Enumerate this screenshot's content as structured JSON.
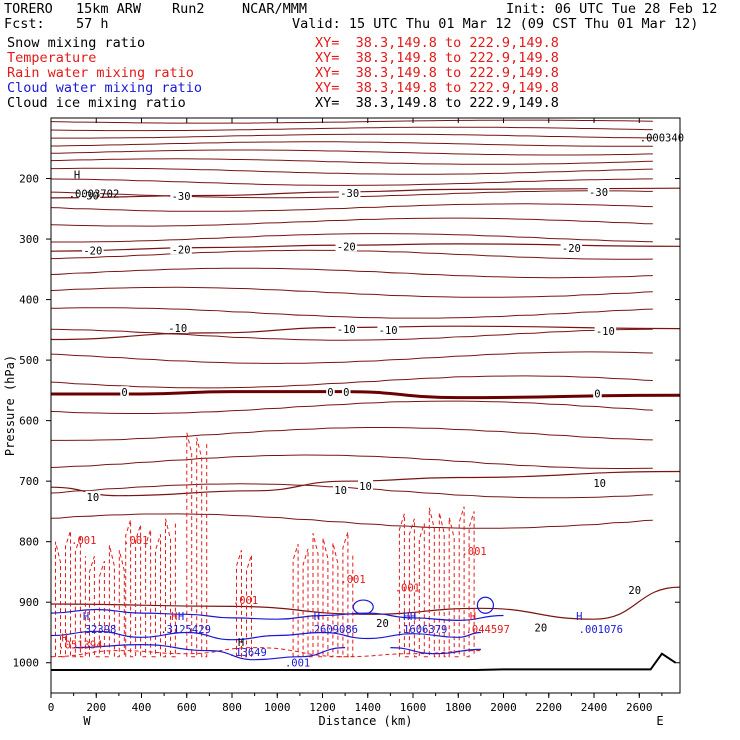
{
  "header": {
    "model": "TORERO",
    "resolution": "15km ARW",
    "run": "Run2",
    "center": "NCAR/MMM",
    "init": "Init: 06 UTC Tue 28 Feb 12",
    "fcst_label": "Fcst:",
    "fcst_value": "57 h",
    "valid": "Valid: 15 UTC Thu 01 Mar 12 (09 CST Thu 01 Mar 12)"
  },
  "fields": [
    {
      "label": "Snow mixing ratio",
      "xy": "XY=  38.3,149.8 to 222.9,149.8",
      "color": "#000000"
    },
    {
      "label": "Temperature",
      "xy": "XY=  38.3,149.8 to 222.9,149.8",
      "color": "#e41a1a"
    },
    {
      "label": "Rain water mixing ratio",
      "xy": "XY=  38.3,149.8 to 222.9,149.8",
      "color": "#e41a1a"
    },
    {
      "label": "Cloud water mixing ratio",
      "xy": "XY=  38.3,149.8 to 222.9,149.8",
      "color": "#1a1ad6"
    },
    {
      "label": "Cloud ice mixing ratio",
      "xy": "XY=  38.3,149.8 to 222.9,149.8",
      "color": "#000000"
    }
  ],
  "chart_data": {
    "type": "cross-section contour",
    "xlabel": "Distance (km)",
    "ylabel": "Pressure (hPa)",
    "xlim": [
      0,
      2780
    ],
    "ylim": [
      1050,
      100
    ],
    "x_ticks": [
      0,
      200,
      400,
      600,
      800,
      1000,
      1200,
      1400,
      1600,
      1800,
      2000,
      2200,
      2400,
      2600
    ],
    "y_ticks": [
      200,
      300,
      400,
      500,
      600,
      700,
      800,
      900,
      1000
    ],
    "left_end": "W",
    "right_end": "E",
    "temperature_isotherms": [
      {
        "label": "-30",
        "p_at": [
          [
            0,
            232
          ],
          [
            700,
            228
          ],
          [
            1300,
            222
          ],
          [
            1800,
            218
          ],
          [
            2780,
            216
          ]
        ]
      },
      {
        "label": "-20",
        "p_at": [
          [
            0,
            320
          ],
          [
            700,
            314
          ],
          [
            1300,
            310
          ],
          [
            1800,
            308
          ],
          [
            2780,
            312
          ]
        ]
      },
      {
        "label": "-10",
        "p_at": [
          [
            0,
            466
          ],
          [
            700,
            455
          ],
          [
            1300,
            446
          ],
          [
            1800,
            444
          ],
          [
            2780,
            448
          ]
        ]
      },
      {
        "label": "0",
        "p_at": [
          [
            0,
            556
          ],
          [
            400,
            556
          ],
          [
            800,
            552
          ],
          [
            1300,
            552
          ],
          [
            1800,
            562
          ],
          [
            2780,
            558
          ]
        ]
      },
      {
        "label": "10",
        "p_at": [
          [
            0,
            710
          ],
          [
            300,
            724
          ],
          [
            900,
            716
          ],
          [
            1300,
            700
          ],
          [
            1800,
            694
          ],
          [
            2780,
            684
          ]
        ]
      },
      {
        "label": "20",
        "p_at": [
          [
            0,
            903
          ],
          [
            800,
            907
          ],
          [
            1400,
            920
          ],
          [
            1900,
            910
          ],
          [
            2400,
            928
          ],
          [
            2780,
            875
          ]
        ]
      }
    ],
    "temperature_labels": [
      {
        "text": "-30",
        "x": 170,
        "p": 228
      },
      {
        "text": "-30",
        "x": 575,
        "p": 229
      },
      {
        "text": "-30",
        "x": 1320,
        "p": 224
      },
      {
        "text": "-30",
        "x": 2420,
        "p": 222
      },
      {
        "text": "-20",
        "x": 185,
        "p": 319
      },
      {
        "text": "-20",
        "x": 575,
        "p": 317
      },
      {
        "text": "-20",
        "x": 1305,
        "p": 312
      },
      {
        "text": "-20",
        "x": 2300,
        "p": 315
      },
      {
        "text": "-10",
        "x": 560,
        "p": 447
      },
      {
        "text": "-10",
        "x": 1305,
        "p": 449
      },
      {
        "text": "-10",
        "x": 1490,
        "p": 450
      },
      {
        "text": "-10",
        "x": 2450,
        "p": 452
      },
      {
        "text": "0",
        "x": 325,
        "p": 553
      },
      {
        "text": "0",
        "x": 1235,
        "p": 553
      },
      {
        "text": "0",
        "x": 1305,
        "p": 553
      },
      {
        "text": "0",
        "x": 2415,
        "p": 555
      },
      {
        "text": "10",
        "x": 185,
        "p": 726
      },
      {
        "text": "10",
        "x": 1280,
        "p": 715
      },
      {
        "text": "10",
        "x": 1390,
        "p": 708
      },
      {
        "text": "10",
        "x": 2425,
        "p": 703
      },
      {
        "text": "20",
        "x": 1465,
        "p": 934
      },
      {
        "text": "20",
        "x": 2165,
        "p": 942
      },
      {
        "text": "20",
        "x": 2580,
        "p": 880
      }
    ],
    "background_isentropes_p": [
      106,
      118,
      130,
      143,
      157,
      172,
      188,
      206,
      226,
      248,
      272,
      298,
      326,
      356,
      388,
      422,
      458,
      496,
      536,
      578,
      622,
      668,
      716,
      766
    ],
    "terrain_hPa": [
      [
        0,
        1012
      ],
      [
        1300,
        1012
      ],
      [
        1880,
        1012
      ],
      [
        2000,
        1011
      ],
      [
        2650,
        1011
      ],
      [
        2700,
        985
      ],
      [
        2760,
        1000
      ]
    ],
    "rain_water_labels": [
      {
        "text": ".001",
        "x": 145,
        "p": 797
      },
      {
        "text": ".001",
        "x": 375,
        "p": 797
      },
      {
        "text": ".001",
        "x": 860,
        "p": 896
      },
      {
        "text": ".001",
        "x": 1335,
        "p": 862
      },
      {
        "text": ".001",
        "x": 1575,
        "p": 876
      },
      {
        "text": ".001",
        "x": 1870,
        "p": 815
      }
    ],
    "cloud_water_labels": [
      {
        "text": ".13649",
        "x": 870,
        "p": 982
      },
      {
        "text": ".001",
        "x": 1090,
        "p": 1000
      }
    ],
    "maxima_labels": [
      {
        "text": ".0003702",
        "x": 190,
        "p": 225,
        "color": "#000000"
      },
      {
        "text": ".000340",
        "x": 2700,
        "p": 132,
        "color": "#000000"
      },
      {
        "text": ".32398",
        "x": 205,
        "p": 944,
        "color": "#1a1ad6"
      },
      {
        "text": ".3125429",
        "x": 595,
        "p": 944,
        "color": "#1a1ad6"
      },
      {
        "text": ".2609086",
        "x": 1245,
        "p": 944,
        "color": "#1a1ad6"
      },
      {
        "text": ".1606379",
        "x": 1640,
        "p": 944,
        "color": "#1a1ad6"
      },
      {
        "text": ".044597",
        "x": 1930,
        "p": 944,
        "color": "#e41a1a"
      },
      {
        "text": ".001076",
        "x": 2430,
        "p": 944,
        "color": "#1a1ad6"
      },
      {
        "text": ".051394",
        "x": 130,
        "p": 970,
        "color": "#e41a1a"
      }
    ],
    "highs": [
      {
        "x": 115,
        "p": 193,
        "color": "#000000"
      },
      {
        "x": 155,
        "p": 923,
        "color": "#1a1ad6"
      },
      {
        "x": 545,
        "p": 923,
        "color": "#e41a1a"
      },
      {
        "x": 575,
        "p": 923,
        "color": "#1a1ad6"
      },
      {
        "x": 1175,
        "p": 923,
        "color": "#1a1ad6"
      },
      {
        "x": 1570,
        "p": 923,
        "color": "#1a1ad6"
      },
      {
        "x": 1600,
        "p": 923,
        "color": "#1a1ad6"
      },
      {
        "x": 1865,
        "p": 923,
        "color": "#e41a1a"
      },
      {
        "x": 2335,
        "p": 923,
        "color": "#1a1ad6"
      },
      {
        "x": 60,
        "p": 958,
        "color": "#e41a1a"
      },
      {
        "x": 840,
        "p": 966,
        "color": "#000000"
      }
    ],
    "palette": {
      "temperature": "#7a1414",
      "zero_isotherm": "#6a0000",
      "rain": "#e41a1a",
      "cloud_water": "#1a1ad6",
      "axes": "#000000"
    }
  }
}
